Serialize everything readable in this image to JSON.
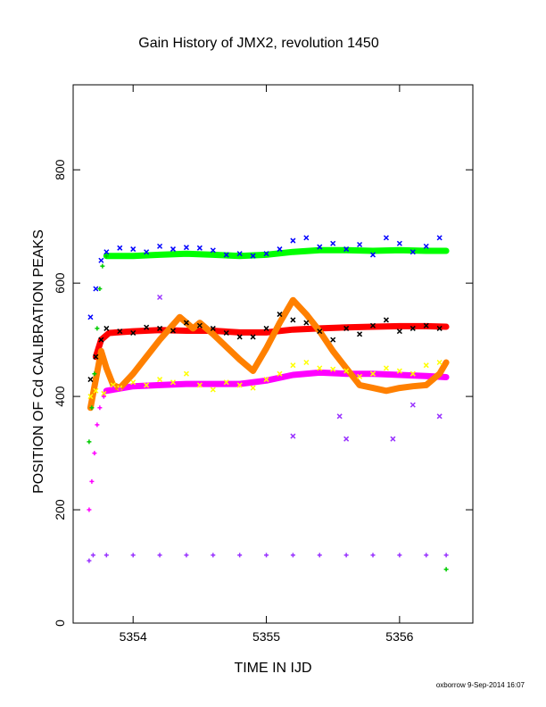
{
  "chart_data": {
    "type": "scatter",
    "title": "Gain History of JMX2, revolution 1450",
    "xlabel": "TIME IN IJD",
    "ylabel": "POSITION OF Cd CALIBRATION PEAKS",
    "xlim": [
      5353.55,
      5356.55
    ],
    "ylim": [
      0,
      950
    ],
    "xticks": [
      5354,
      5355,
      5356
    ],
    "yticks": [
      0,
      200,
      400,
      600,
      800
    ],
    "footer": "oxborrow  9-Sep-2014 16:07",
    "series": [
      {
        "color": "#0000ff",
        "marker": "x",
        "points": [
          [
            5353.68,
            540
          ],
          [
            5353.72,
            590
          ],
          [
            5353.76,
            640
          ],
          [
            5353.8,
            655
          ],
          [
            5353.9,
            662
          ],
          [
            5354.0,
            660
          ],
          [
            5354.1,
            655
          ],
          [
            5354.2,
            665
          ],
          [
            5354.3,
            660
          ],
          [
            5354.4,
            663
          ],
          [
            5354.5,
            662
          ],
          [
            5354.6,
            658
          ],
          [
            5354.7,
            650
          ],
          [
            5354.8,
            652
          ],
          [
            5354.9,
            648
          ],
          [
            5355.0,
            652
          ],
          [
            5355.1,
            660
          ],
          [
            5355.2,
            675
          ],
          [
            5355.3,
            680
          ],
          [
            5355.4,
            664
          ],
          [
            5355.5,
            670
          ],
          [
            5355.6,
            660
          ],
          [
            5355.7,
            668
          ],
          [
            5355.8,
            650
          ],
          [
            5355.9,
            680
          ],
          [
            5356.0,
            670
          ],
          [
            5356.1,
            655
          ],
          [
            5356.2,
            665
          ],
          [
            5356.3,
            680
          ]
        ]
      },
      {
        "color": "#000000",
        "marker": "x",
        "points": [
          [
            5353.68,
            430
          ],
          [
            5353.72,
            470
          ],
          [
            5353.76,
            500
          ],
          [
            5353.8,
            520
          ],
          [
            5353.9,
            515
          ],
          [
            5354.0,
            512
          ],
          [
            5354.1,
            522
          ],
          [
            5354.2,
            520
          ],
          [
            5354.3,
            516
          ],
          [
            5354.4,
            530
          ],
          [
            5354.5,
            525
          ],
          [
            5354.6,
            520
          ],
          [
            5354.7,
            512
          ],
          [
            5354.8,
            505
          ],
          [
            5354.9,
            505
          ],
          [
            5355.0,
            520
          ],
          [
            5355.1,
            545
          ],
          [
            5355.2,
            535
          ],
          [
            5355.3,
            530
          ],
          [
            5355.4,
            515
          ],
          [
            5355.5,
            500
          ],
          [
            5355.6,
            520
          ],
          [
            5355.7,
            510
          ],
          [
            5355.8,
            525
          ],
          [
            5355.9,
            535
          ],
          [
            5356.0,
            515
          ],
          [
            5356.1,
            520
          ],
          [
            5356.2,
            525
          ],
          [
            5356.3,
            520
          ]
        ]
      },
      {
        "color": "#ffff00",
        "marker": "x",
        "points": [
          [
            5353.68,
            400
          ],
          [
            5353.72,
            410
          ],
          [
            5353.78,
            405
          ],
          [
            5353.85,
            420
          ],
          [
            5353.9,
            415
          ],
          [
            5354.0,
            425
          ],
          [
            5354.1,
            420
          ],
          [
            5354.2,
            430
          ],
          [
            5354.3,
            425
          ],
          [
            5354.4,
            440
          ],
          [
            5354.5,
            420
          ],
          [
            5354.6,
            412
          ],
          [
            5354.7,
            425
          ],
          [
            5354.8,
            420
          ],
          [
            5354.9,
            415
          ],
          [
            5355.0,
            430
          ],
          [
            5355.1,
            440
          ],
          [
            5355.2,
            455
          ],
          [
            5355.3,
            460
          ],
          [
            5355.4,
            450
          ],
          [
            5355.5,
            448
          ],
          [
            5355.6,
            445
          ],
          [
            5355.7,
            435
          ],
          [
            5355.8,
            440
          ],
          [
            5355.9,
            450
          ],
          [
            5356.0,
            445
          ],
          [
            5356.1,
            440
          ],
          [
            5356.2,
            455
          ],
          [
            5356.3,
            460
          ]
        ]
      },
      {
        "color": "#9933ff",
        "marker": "x",
        "points": [
          [
            5354.2,
            575
          ],
          [
            5355.2,
            330
          ],
          [
            5355.55,
            365
          ],
          [
            5355.6,
            325
          ],
          [
            5355.95,
            325
          ],
          [
            5356.1,
            385
          ],
          [
            5356.3,
            365
          ]
        ]
      },
      {
        "color": "#9933ff",
        "marker": "plus",
        "points": [
          [
            5353.67,
            110
          ],
          [
            5353.7,
            120
          ],
          [
            5353.8,
            120
          ],
          [
            5354.0,
            120
          ],
          [
            5354.2,
            120
          ],
          [
            5354.4,
            120
          ],
          [
            5354.6,
            120
          ],
          [
            5354.8,
            120
          ],
          [
            5355.0,
            120
          ],
          [
            5355.2,
            120
          ],
          [
            5355.4,
            120
          ],
          [
            5355.6,
            120
          ],
          [
            5355.8,
            120
          ],
          [
            5356.0,
            120
          ],
          [
            5356.2,
            120
          ],
          [
            5356.35,
            120
          ]
        ]
      },
      {
        "color": "#ff00ff",
        "marker": "plus",
        "points": [
          [
            5353.67,
            200
          ],
          [
            5353.69,
            250
          ],
          [
            5353.71,
            300
          ],
          [
            5353.73,
            350
          ],
          [
            5353.75,
            380
          ],
          [
            5353.78,
            400
          ],
          [
            5353.85,
            415
          ],
          [
            5353.9,
            413
          ]
        ]
      },
      {
        "color": "#00cc00",
        "marker": "plus",
        "points": [
          [
            5353.67,
            320
          ],
          [
            5353.69,
            380
          ],
          [
            5353.71,
            440
          ],
          [
            5353.73,
            520
          ],
          [
            5353.75,
            590
          ],
          [
            5353.77,
            630
          ],
          [
            5353.8,
            648
          ],
          [
            5356.35,
            95
          ]
        ]
      }
    ],
    "lines": [
      {
        "color": "#00ff00",
        "points": [
          [
            5353.8,
            648
          ],
          [
            5354.0,
            648
          ],
          [
            5354.2,
            650
          ],
          [
            5354.4,
            652
          ],
          [
            5354.6,
            650
          ],
          [
            5354.8,
            648
          ],
          [
            5355.0,
            650
          ],
          [
            5355.2,
            655
          ],
          [
            5355.4,
            658
          ],
          [
            5355.6,
            658
          ],
          [
            5355.8,
            657
          ],
          [
            5356.0,
            658
          ],
          [
            5356.2,
            657
          ],
          [
            5356.35,
            657
          ]
        ]
      },
      {
        "color": "#ff0000",
        "points": [
          [
            5353.72,
            470
          ],
          [
            5353.76,
            500
          ],
          [
            5353.82,
            512
          ],
          [
            5354.0,
            515
          ],
          [
            5354.2,
            517
          ],
          [
            5354.4,
            516
          ],
          [
            5354.6,
            516
          ],
          [
            5354.8,
            513
          ],
          [
            5355.0,
            513
          ],
          [
            5355.2,
            518
          ],
          [
            5355.4,
            520
          ],
          [
            5355.6,
            522
          ],
          [
            5355.8,
            523
          ],
          [
            5356.0,
            524
          ],
          [
            5356.2,
            524
          ],
          [
            5356.35,
            523
          ]
        ]
      },
      {
        "color": "#ff00ff",
        "points": [
          [
            5353.8,
            410
          ],
          [
            5354.0,
            418
          ],
          [
            5354.2,
            420
          ],
          [
            5354.4,
            422
          ],
          [
            5354.6,
            422
          ],
          [
            5354.8,
            422
          ],
          [
            5355.0,
            428
          ],
          [
            5355.2,
            438
          ],
          [
            5355.4,
            442
          ],
          [
            5355.6,
            440
          ],
          [
            5355.8,
            440
          ],
          [
            5356.0,
            438
          ],
          [
            5356.2,
            436
          ],
          [
            5356.35,
            434
          ]
        ]
      },
      {
        "color": "#ff8000",
        "points": [
          [
            5353.68,
            380
          ],
          [
            5353.72,
            430
          ],
          [
            5353.76,
            480
          ],
          [
            5353.8,
            450
          ],
          [
            5353.85,
            420
          ],
          [
            5353.9,
            415
          ],
          [
            5354.0,
            440
          ],
          [
            5354.2,
            500
          ],
          [
            5354.35,
            540
          ],
          [
            5354.45,
            520
          ],
          [
            5354.5,
            530
          ],
          [
            5354.6,
            510
          ],
          [
            5354.8,
            465
          ],
          [
            5354.9,
            445
          ],
          [
            5355.0,
            485
          ],
          [
            5355.1,
            530
          ],
          [
            5355.2,
            570
          ],
          [
            5355.3,
            545
          ],
          [
            5355.4,
            515
          ],
          [
            5355.5,
            480
          ],
          [
            5355.6,
            450
          ],
          [
            5355.7,
            420
          ],
          [
            5355.8,
            415
          ],
          [
            5355.9,
            410
          ],
          [
            5356.0,
            415
          ],
          [
            5356.1,
            418
          ],
          [
            5356.2,
            420
          ],
          [
            5356.3,
            440
          ],
          [
            5356.35,
            460
          ]
        ]
      }
    ]
  }
}
